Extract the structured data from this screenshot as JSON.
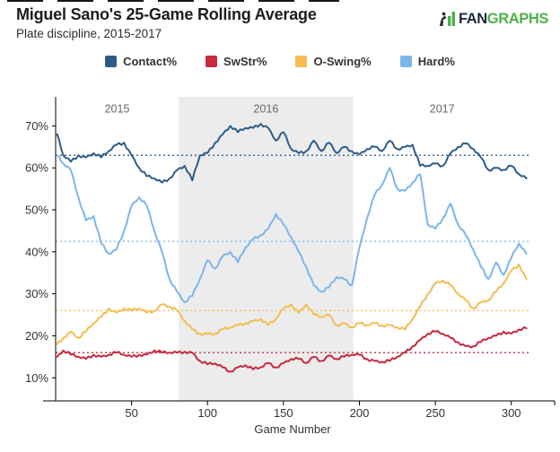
{
  "page": {
    "title": "Miguel Sano's 25-Game Rolling Average",
    "subtitle": "Plate discipline, 2015-2017"
  },
  "logo": {
    "fan": "FAN",
    "graphs": "GRAPHS",
    "green": "#4eb04a",
    "dark": "#1c2b39"
  },
  "chart_data": {
    "type": "line",
    "title": "Miguel Sano's 25-Game Rolling Average",
    "subtitle": "Plate discipline, 2015-2017",
    "xlabel": "Game Number",
    "ylabel": "",
    "grid": false,
    "legend_position": "top",
    "xlim": [
      0,
      312
    ],
    "ylim_percent": [
      4.5,
      73.5
    ],
    "x_ticks": [
      50,
      100,
      150,
      200,
      250,
      300
    ],
    "y_ticks_percent": [
      10,
      20,
      30,
      40,
      50,
      60,
      70
    ],
    "region_fill": "#ececec",
    "season_regions": [
      {
        "label": "2015",
        "start": 1,
        "end": 80,
        "shaded": false
      },
      {
        "label": "2016",
        "start": 81,
        "end": 196,
        "shaded": true
      },
      {
        "label": "2017",
        "start": 197,
        "end": 312,
        "shaded": false
      }
    ],
    "x": [
      1,
      5,
      10,
      15,
      20,
      25,
      30,
      35,
      40,
      45,
      50,
      55,
      60,
      65,
      70,
      75,
      80,
      85,
      90,
      95,
      100,
      105,
      110,
      115,
      120,
      125,
      130,
      135,
      140,
      145,
      150,
      155,
      160,
      165,
      170,
      175,
      180,
      185,
      190,
      195,
      200,
      205,
      210,
      215,
      220,
      225,
      230,
      235,
      240,
      245,
      250,
      255,
      260,
      265,
      270,
      275,
      280,
      285,
      290,
      295,
      300,
      305,
      310
    ],
    "series": [
      {
        "name": "Contact%",
        "color": "#2e5c87",
        "average_line": 63,
        "values": [
          68,
          63,
          61.5,
          63,
          62.5,
          63.5,
          62.5,
          64,
          65.5,
          66,
          63,
          60,
          58,
          57.5,
          56.5,
          57.5,
          59.5,
          60.5,
          57,
          63,
          63.5,
          66,
          68,
          70,
          68.5,
          69.5,
          69.5,
          70.5,
          69.5,
          66.5,
          68.5,
          64.5,
          63.5,
          64,
          66.5,
          64,
          66,
          63.5,
          65,
          64,
          63.2,
          64.5,
          65,
          64,
          66.5,
          64.5,
          65,
          65.5,
          60.5,
          60.5,
          61,
          60.5,
          63.5,
          65,
          65.8,
          64.5,
          62.5,
          59.5,
          60,
          59.5,
          60.5,
          58.5,
          57.5
        ]
      },
      {
        "name": "SwStr%",
        "color": "#c7293d",
        "average_line": 16,
        "values": [
          15,
          16.5,
          15.5,
          15,
          14.5,
          15.5,
          15,
          15.5,
          16,
          15.5,
          15,
          15.5,
          15.5,
          16.5,
          16,
          16,
          16,
          16.2,
          16,
          14,
          13.2,
          13.4,
          12.5,
          11.5,
          12.5,
          13,
          12,
          12.5,
          13.5,
          12.5,
          13.5,
          14.5,
          14.5,
          13.5,
          15,
          14,
          15.3,
          14.5,
          15,
          15.5,
          15.5,
          14.5,
          14,
          13.8,
          14,
          15,
          16,
          17.5,
          19,
          20.5,
          21,
          20.5,
          19.5,
          18.5,
          17.5,
          17.5,
          18.5,
          19.5,
          20,
          21,
          20.5,
          21.5,
          21.8
        ]
      },
      {
        "name": "O-Swing%",
        "color": "#f3bd52",
        "average_line": 26,
        "values": [
          18,
          19.5,
          21,
          19.5,
          21,
          23,
          24.5,
          26.5,
          25.5,
          26.5,
          26,
          26.5,
          25.5,
          26,
          27.5,
          27,
          26,
          23.5,
          21.5,
          20.5,
          20.5,
          20.5,
          21.5,
          22,
          22.5,
          23,
          23.5,
          24,
          22.5,
          24,
          26.5,
          27.5,
          25.5,
          27.5,
          25,
          24.5,
          25,
          22.5,
          23,
          22,
          23,
          22.5,
          23,
          22.5,
          22.5,
          22,
          21.5,
          24,
          27,
          30,
          32.5,
          33.2,
          32,
          30,
          28.5,
          26.5,
          28,
          28.5,
          30.5,
          32.5,
          35.5,
          37,
          33.5
        ]
      },
      {
        "name": "Hard%",
        "color": "#7cb5ec",
        "average_line": 42.5,
        "values": [
          63,
          61,
          59.5,
          53,
          47.5,
          48.5,
          42,
          39.5,
          40.5,
          45,
          51,
          53,
          51,
          45,
          40,
          33.5,
          30.5,
          28,
          29.5,
          33.5,
          38,
          36,
          39,
          40,
          37.5,
          41,
          43,
          44,
          45.5,
          49,
          46.5,
          43.5,
          40,
          36.5,
          32,
          30.5,
          31.5,
          34,
          33.5,
          32,
          41,
          48,
          53.5,
          56,
          60,
          55,
          54.5,
          56.5,
          58.5,
          46.5,
          45.5,
          48,
          51.5,
          46.5,
          44,
          40.5,
          36.5,
          33.5,
          37.5,
          34.5,
          38.5,
          42,
          39.5
        ]
      }
    ]
  }
}
